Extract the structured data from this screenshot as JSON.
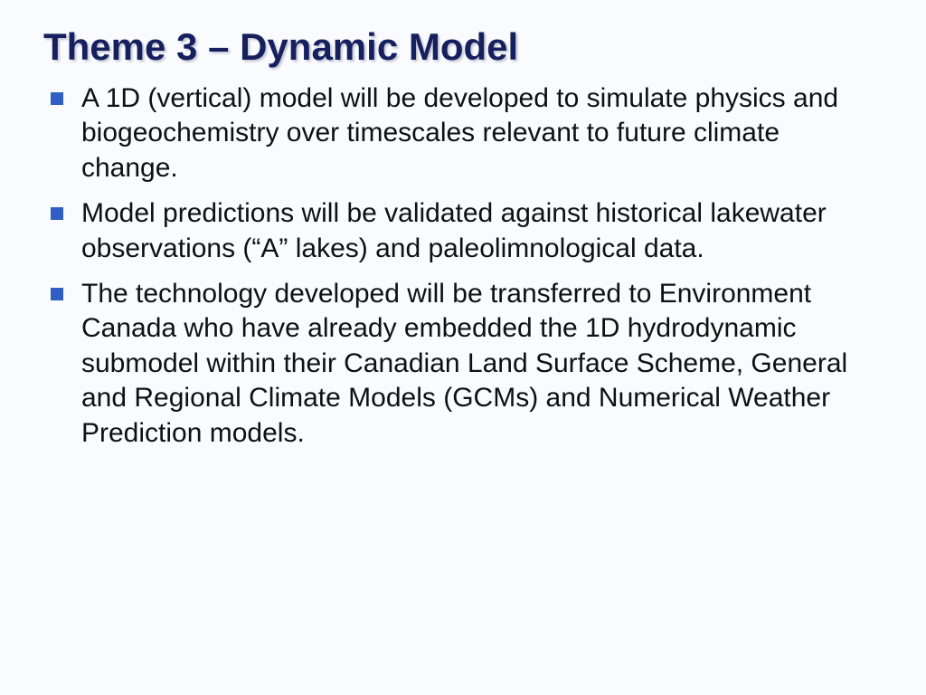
{
  "slide": {
    "title": "Theme 3 – Dynamic Model",
    "title_color": "#16205e",
    "title_fontsize": 42,
    "bullet_fontsize": 30,
    "bullet_marker_color": "#2f5fc4",
    "bullet_marker_size": 14,
    "text_color": "#101010",
    "background_color": "#f9fbff",
    "font_family": "Verdana",
    "bullets": [
      "A 1D (vertical) model will be developed to simulate physics and biogeochemistry over timescales relevant to future climate change.",
      "Model predictions will be validated against historical lakewater observations (“A” lakes) and paleolimnological data.",
      "The technology developed will be transferred to Environment Canada who have already embedded the 1D hydrodynamic submodel within their Canadian Land Surface Scheme, General and Regional Climate Models (GCMs) and Numerical Weather Prediction models."
    ]
  }
}
